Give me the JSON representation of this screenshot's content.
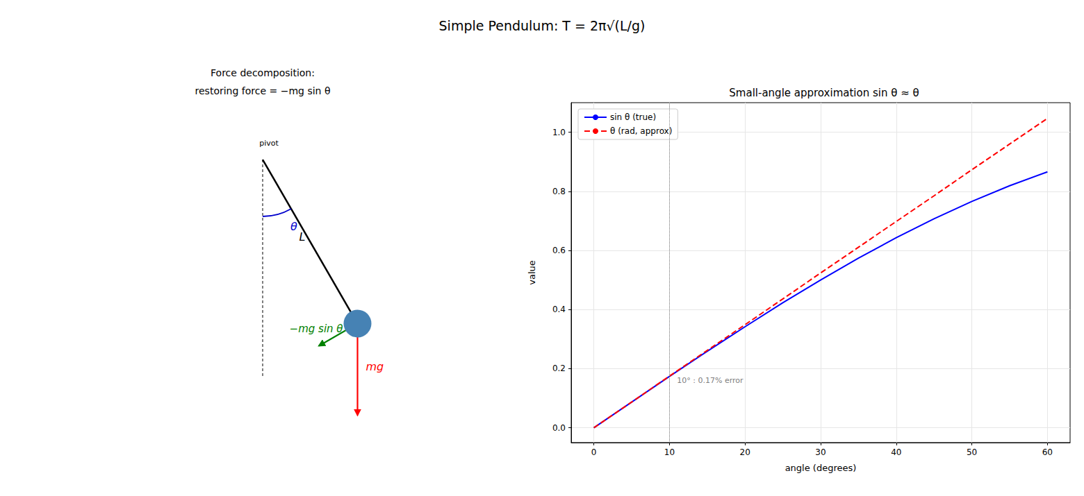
{
  "title": "Simple Pendulum: T = 2π√(L/g)",
  "diagram": {
    "title": "Force decomposition:\nrestoring force = −mg sin θ",
    "pivot_label": "pivot",
    "angle_label": "θ",
    "length_label": "L",
    "restoring_label": "−mg sin θ",
    "weight_label": "mg",
    "angle_deg": 30
  },
  "chart_data": {
    "type": "line",
    "title": "Small-angle approximation sin θ ≈ θ",
    "x_label": "angle (degrees)",
    "y_label": "value",
    "x": [
      0,
      5,
      10,
      15,
      20,
      25,
      30,
      35,
      40,
      45,
      50,
      55,
      60
    ],
    "series": [
      {
        "name": "sin θ (true)",
        "color": "#0000ff",
        "line_style": "solid",
        "values": [
          0,
          0.087,
          0.174,
          0.259,
          0.342,
          0.423,
          0.5,
          0.574,
          0.643,
          0.707,
          0.766,
          0.819,
          0.866
        ]
      },
      {
        "name": "θ (rad, approx)",
        "color": "#ff0000",
        "line_style": "dashed",
        "values": [
          0,
          0.087,
          0.175,
          0.262,
          0.349,
          0.436,
          0.524,
          0.611,
          0.698,
          0.785,
          0.873,
          0.96,
          1.047
        ]
      }
    ],
    "xlim": [
      -3,
      63
    ],
    "xticks": [
      0,
      10,
      20,
      30,
      40,
      50,
      60
    ],
    "ylim": [
      -0.05,
      1.1
    ],
    "yticks": [
      {
        "value": 0,
        "label": "0.0"
      },
      {
        "value": 0.2,
        "label": "0.2"
      },
      {
        "value": 0.4,
        "label": "0.4"
      },
      {
        "value": 0.6,
        "label": "0.6"
      },
      {
        "value": 0.8,
        "label": "0.8"
      },
      {
        "value": 1,
        "label": "1.0"
      }
    ],
    "grid": true,
    "legend": "upper left",
    "vline": 10,
    "annotation": {
      "text": "10° : 0.17% error",
      "x": 11,
      "y": 0.16
    }
  }
}
